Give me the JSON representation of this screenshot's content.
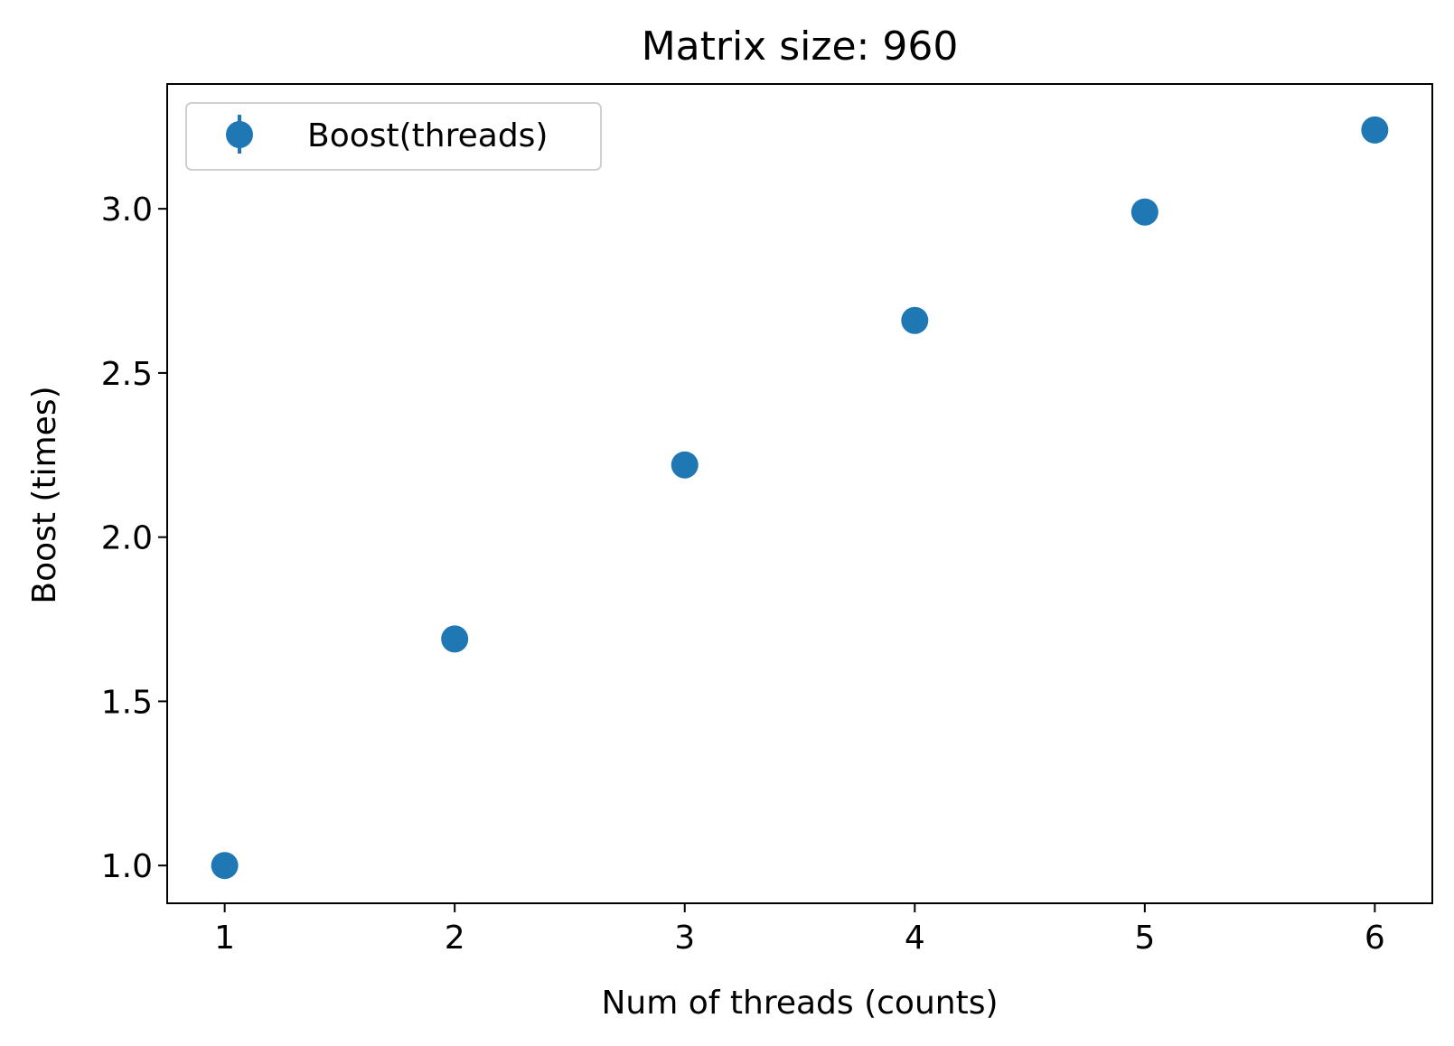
{
  "chart_data": {
    "type": "scatter",
    "title": "Matrix size: 960",
    "xlabel": "Num of threads (counts)",
    "ylabel": "Boost (times)",
    "xlim": [
      0.75,
      6.25
    ],
    "ylim": [
      0.885,
      3.38
    ],
    "xticks": [
      1,
      2,
      3,
      4,
      5,
      6
    ],
    "yticks": [
      1.0,
      1.5,
      2.0,
      2.5,
      3.0
    ],
    "xtick_labels": [
      "1",
      "2",
      "3",
      "4",
      "5",
      "6"
    ],
    "ytick_labels": [
      "1.0",
      "1.5",
      "2.0",
      "2.5",
      "3.0"
    ],
    "grid": false,
    "legend_position": "top-left",
    "series": [
      {
        "name": "Boost(threads)",
        "marker": "errorbar-point",
        "color": "#1f77b4",
        "x": [
          1,
          2,
          3,
          4,
          5,
          6
        ],
        "y": [
          1.0,
          1.69,
          2.22,
          2.66,
          2.99,
          3.24
        ]
      }
    ]
  }
}
